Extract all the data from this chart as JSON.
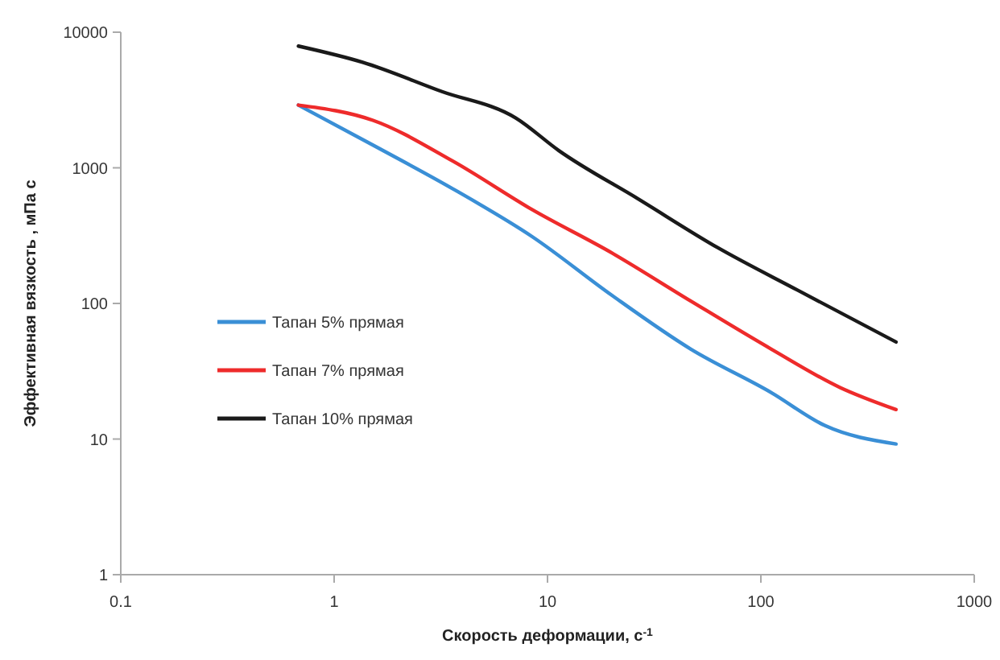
{
  "chart_data": {
    "type": "line",
    "xlabel": "Скорость деформации, с$^{-1}$",
    "ylabel": "Эффективная вязкость , мПа с",
    "log": "xy",
    "xlim": [
      0.1,
      1000
    ],
    "xticks": [
      0.1,
      1,
      10,
      100,
      1000
    ],
    "ylim": [
      1,
      10000
    ],
    "yticks": [
      1,
      10,
      100,
      1000,
      10000
    ],
    "grid": false,
    "legend": "left",
    "marker": "none",
    "line_style": "solid",
    "series": [
      {
        "name": "Тапан 5% прямая",
        "color": "#3a8fd6",
        "x": [
          0.68,
          1.52,
          3.6,
          8.5,
          20,
          47,
          112,
          199,
          430
        ],
        "values": [
          2900,
          1470,
          700,
          310,
          115,
          46,
          22,
          12.6,
          9.2
        ]
      },
      {
        "name": "Тапан 7% прямая",
        "color": "#ee2b2b",
        "x": [
          0.68,
          1.52,
          3.6,
          8.5,
          20,
          47,
          112,
          235,
          430
        ],
        "values": [
          2900,
          2240,
          1120,
          490,
          236,
          104,
          46,
          24,
          16.5
        ]
      },
      {
        "name": "Тапан 10% прямая",
        "color": "#1a1a1a",
        "x": [
          0.68,
          1.36,
          3.2,
          7.1,
          11.3,
          26.6,
          63,
          149,
          430
        ],
        "values": [
          7900,
          6000,
          3650,
          2330,
          1340,
          590,
          257,
          125,
          52
        ]
      }
    ]
  }
}
